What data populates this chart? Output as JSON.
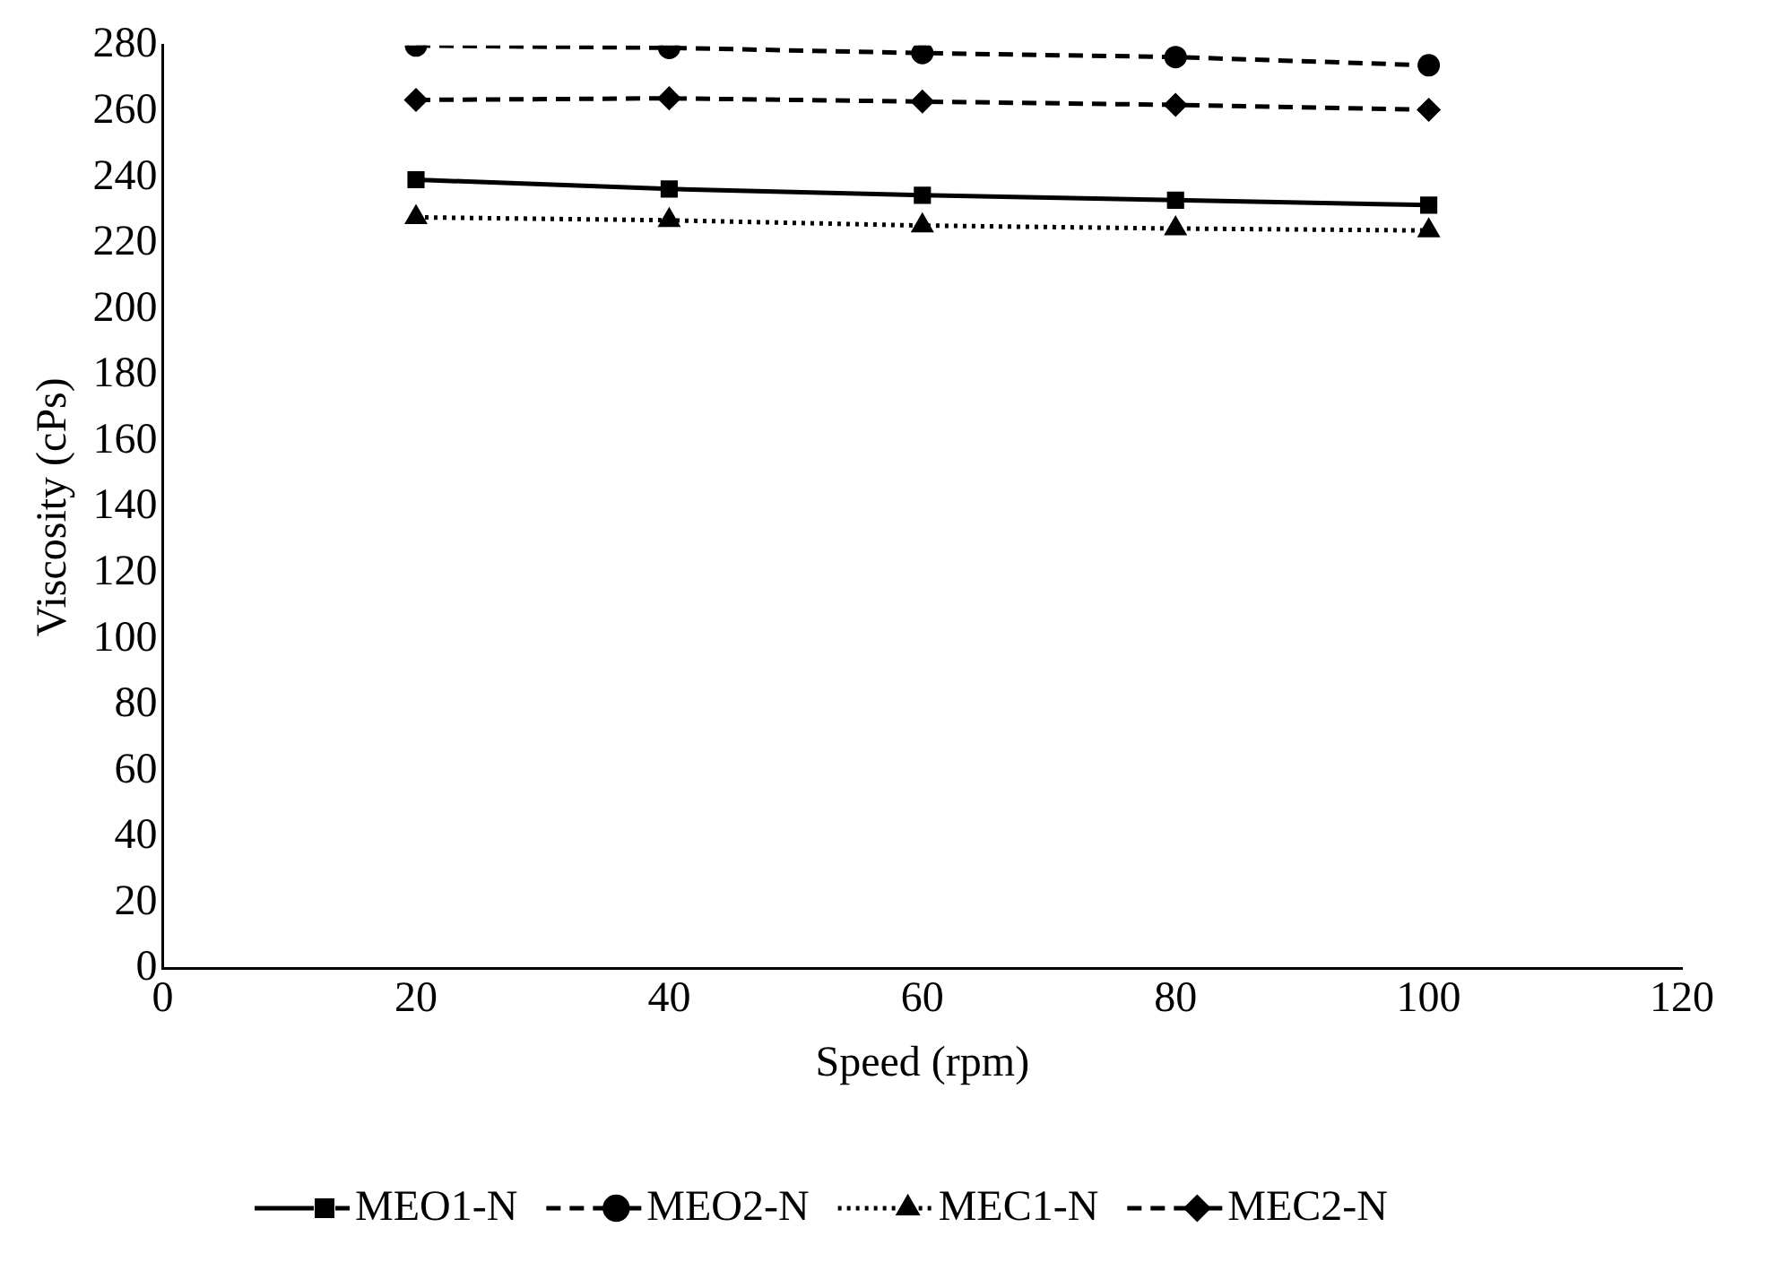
{
  "chart_data": {
    "type": "line",
    "xlabel": "Speed (rpm)",
    "ylabel": "Viscosity (cPs)",
    "x": [
      20,
      40,
      60,
      80,
      100
    ],
    "xlim": [
      0,
      120
    ],
    "xticks": [
      0,
      20,
      40,
      60,
      80,
      100,
      120
    ],
    "ylim": [
      0,
      280
    ],
    "yticks": [
      0,
      20,
      40,
      60,
      80,
      100,
      120,
      140,
      160,
      180,
      200,
      220,
      240,
      260,
      280
    ],
    "grid": false,
    "legend": "bottom",
    "series": [
      {
        "name": "MEO1-N",
        "color": "#000000",
        "marker": "square",
        "line_style": "solid",
        "values": [
          239.3,
          236.5,
          234.6,
          233.1,
          231.6
        ]
      },
      {
        "name": "MEO2-N",
        "color": "#000000",
        "marker": "circle",
        "line_style": "dashed",
        "values": [
          280.0,
          279.3,
          277.7,
          276.5,
          274.0
        ]
      },
      {
        "name": "MEC1-N",
        "color": "#000000",
        "marker": "triangle",
        "line_style": "dotted",
        "values": [
          227.9,
          227.0,
          225.4,
          224.5,
          223.9
        ]
      },
      {
        "name": "MEC2-N",
        "color": "#000000",
        "marker": "diamond",
        "line_style": "dashed",
        "values": [
          263.5,
          264.0,
          263.0,
          262.0,
          260.5
        ]
      }
    ]
  }
}
